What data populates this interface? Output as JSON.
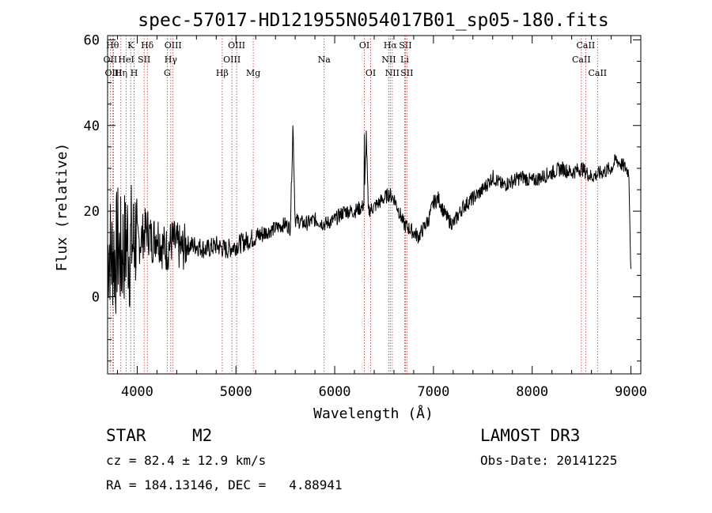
{
  "chart_data": {
    "type": "line",
    "title": "spec-57017-HD121955N054017B01_sp05-180.fits",
    "xlabel": "Wavelength (Å)",
    "ylabel": "Flux (relative)",
    "xlim": [
      3700,
      9100
    ],
    "ylim": [
      -18,
      61
    ],
    "xticks": [
      4000,
      5000,
      6000,
      7000,
      8000,
      9000
    ],
    "yticks": [
      0,
      20,
      40,
      60
    ],
    "series": [
      {
        "x": [
          3700,
          3720,
          3740,
          3760,
          3780,
          3800,
          3820,
          3840,
          3860,
          3880,
          3900,
          3920,
          3940,
          3960,
          3980,
          4000,
          4050,
          4100,
          4150,
          4200,
          4250,
          4300,
          4350,
          4400,
          4450,
          4500,
          4600,
          4700,
          4800,
          4900,
          5000,
          5100,
          5200,
          5300,
          5400,
          5500,
          5550,
          5577,
          5600,
          5700,
          5800,
          5900,
          6000,
          6100,
          6200,
          6280,
          6300,
          6320,
          6340,
          6400,
          6450,
          6500,
          6550,
          6600,
          6650,
          6700,
          6750,
          6800,
          6850,
          6900,
          6950,
          7000,
          7050,
          7100,
          7150,
          7200,
          7250,
          7300,
          7400,
          7500,
          7600,
          7700,
          7800,
          7900,
          8000,
          8100,
          8200,
          8300,
          8400,
          8500,
          8600,
          8700,
          8800,
          8850,
          8900,
          8950,
          8980,
          9000
        ],
        "y": [
          10,
          12,
          9,
          11,
          8,
          13,
          10,
          9,
          12,
          11,
          14,
          10,
          13,
          12,
          15,
          12,
          14,
          16,
          13,
          15,
          12,
          11,
          13,
          12,
          11,
          12,
          12,
          11,
          12,
          11,
          12,
          13,
          14,
          15,
          16,
          17,
          16,
          40,
          18,
          17,
          18,
          17,
          18,
          20,
          20,
          21,
          22,
          38,
          20,
          21,
          22,
          23,
          24,
          23,
          20,
          17,
          16,
          15,
          14,
          16,
          18,
          22,
          23,
          20,
          18,
          17,
          19,
          21,
          23,
          25,
          28,
          26,
          27,
          28,
          27,
          28,
          29,
          30,
          29,
          30,
          28,
          29,
          30,
          32,
          31,
          30,
          29,
          5
        ]
      }
    ],
    "lines": [
      {
        "label": "OII",
        "x": 3727,
        "row": 1
      },
      {
        "label": "Hθ",
        "x": 3750,
        "row": 0
      },
      {
        "label": "OIII",
        "x": 3760,
        "row": 2
      },
      {
        "label": "Hη",
        "x": 3835,
        "row": 2
      },
      {
        "label": "HeI",
        "x": 3889,
        "row": 1
      },
      {
        "label": "K",
        "x": 3934,
        "row": 0
      },
      {
        "label": "H",
        "x": 3969,
        "row": 2
      },
      {
        "label": "SII",
        "x": 4070,
        "row": 1
      },
      {
        "label": "Hδ",
        "x": 4102,
        "row": 0
      },
      {
        "label": "G",
        "x": 4304,
        "row": 2
      },
      {
        "label": "Hγ",
        "x": 4340,
        "row": 1
      },
      {
        "label": "OIII",
        "x": 4363,
        "row": 0
      },
      {
        "label": "Hβ",
        "x": 4861,
        "row": 2
      },
      {
        "label": "OIII",
        "x": 4959,
        "row": 1
      },
      {
        "label": "OIII",
        "x": 5007,
        "row": 0
      },
      {
        "label": "Mg",
        "x": 5175,
        "row": 2
      },
      {
        "label": "Na",
        "x": 5893,
        "row": 1
      },
      {
        "label": "OI",
        "x": 6300,
        "row": 0
      },
      {
        "label": "OI",
        "x": 6364,
        "row": 2
      },
      {
        "label": "NII",
        "x": 6548,
        "row": 1
      },
      {
        "label": "Hα",
        "x": 6563,
        "row": 0
      },
      {
        "label": "NII",
        "x": 6583,
        "row": 2
      },
      {
        "label": "Li",
        "x": 6708,
        "row": 1
      },
      {
        "label": "SII",
        "x": 6716,
        "row": 0
      },
      {
        "label": "SII",
        "x": 6731,
        "row": 2
      },
      {
        "label": "CaII",
        "x": 8498,
        "row": 1
      },
      {
        "label": "CaII",
        "x": 8542,
        "row": 0
      },
      {
        "label": "CaII",
        "x": 8662,
        "row": 2
      }
    ]
  },
  "info": {
    "class_label": "STAR",
    "subclass": "M2",
    "survey": "LAMOST DR3",
    "cz": "cz = 82.4 ± 12.9 km/s",
    "obs_date": "Obs-Date: 20141225",
    "coords": "RA = 184.13146, DEC =   4.88941"
  }
}
